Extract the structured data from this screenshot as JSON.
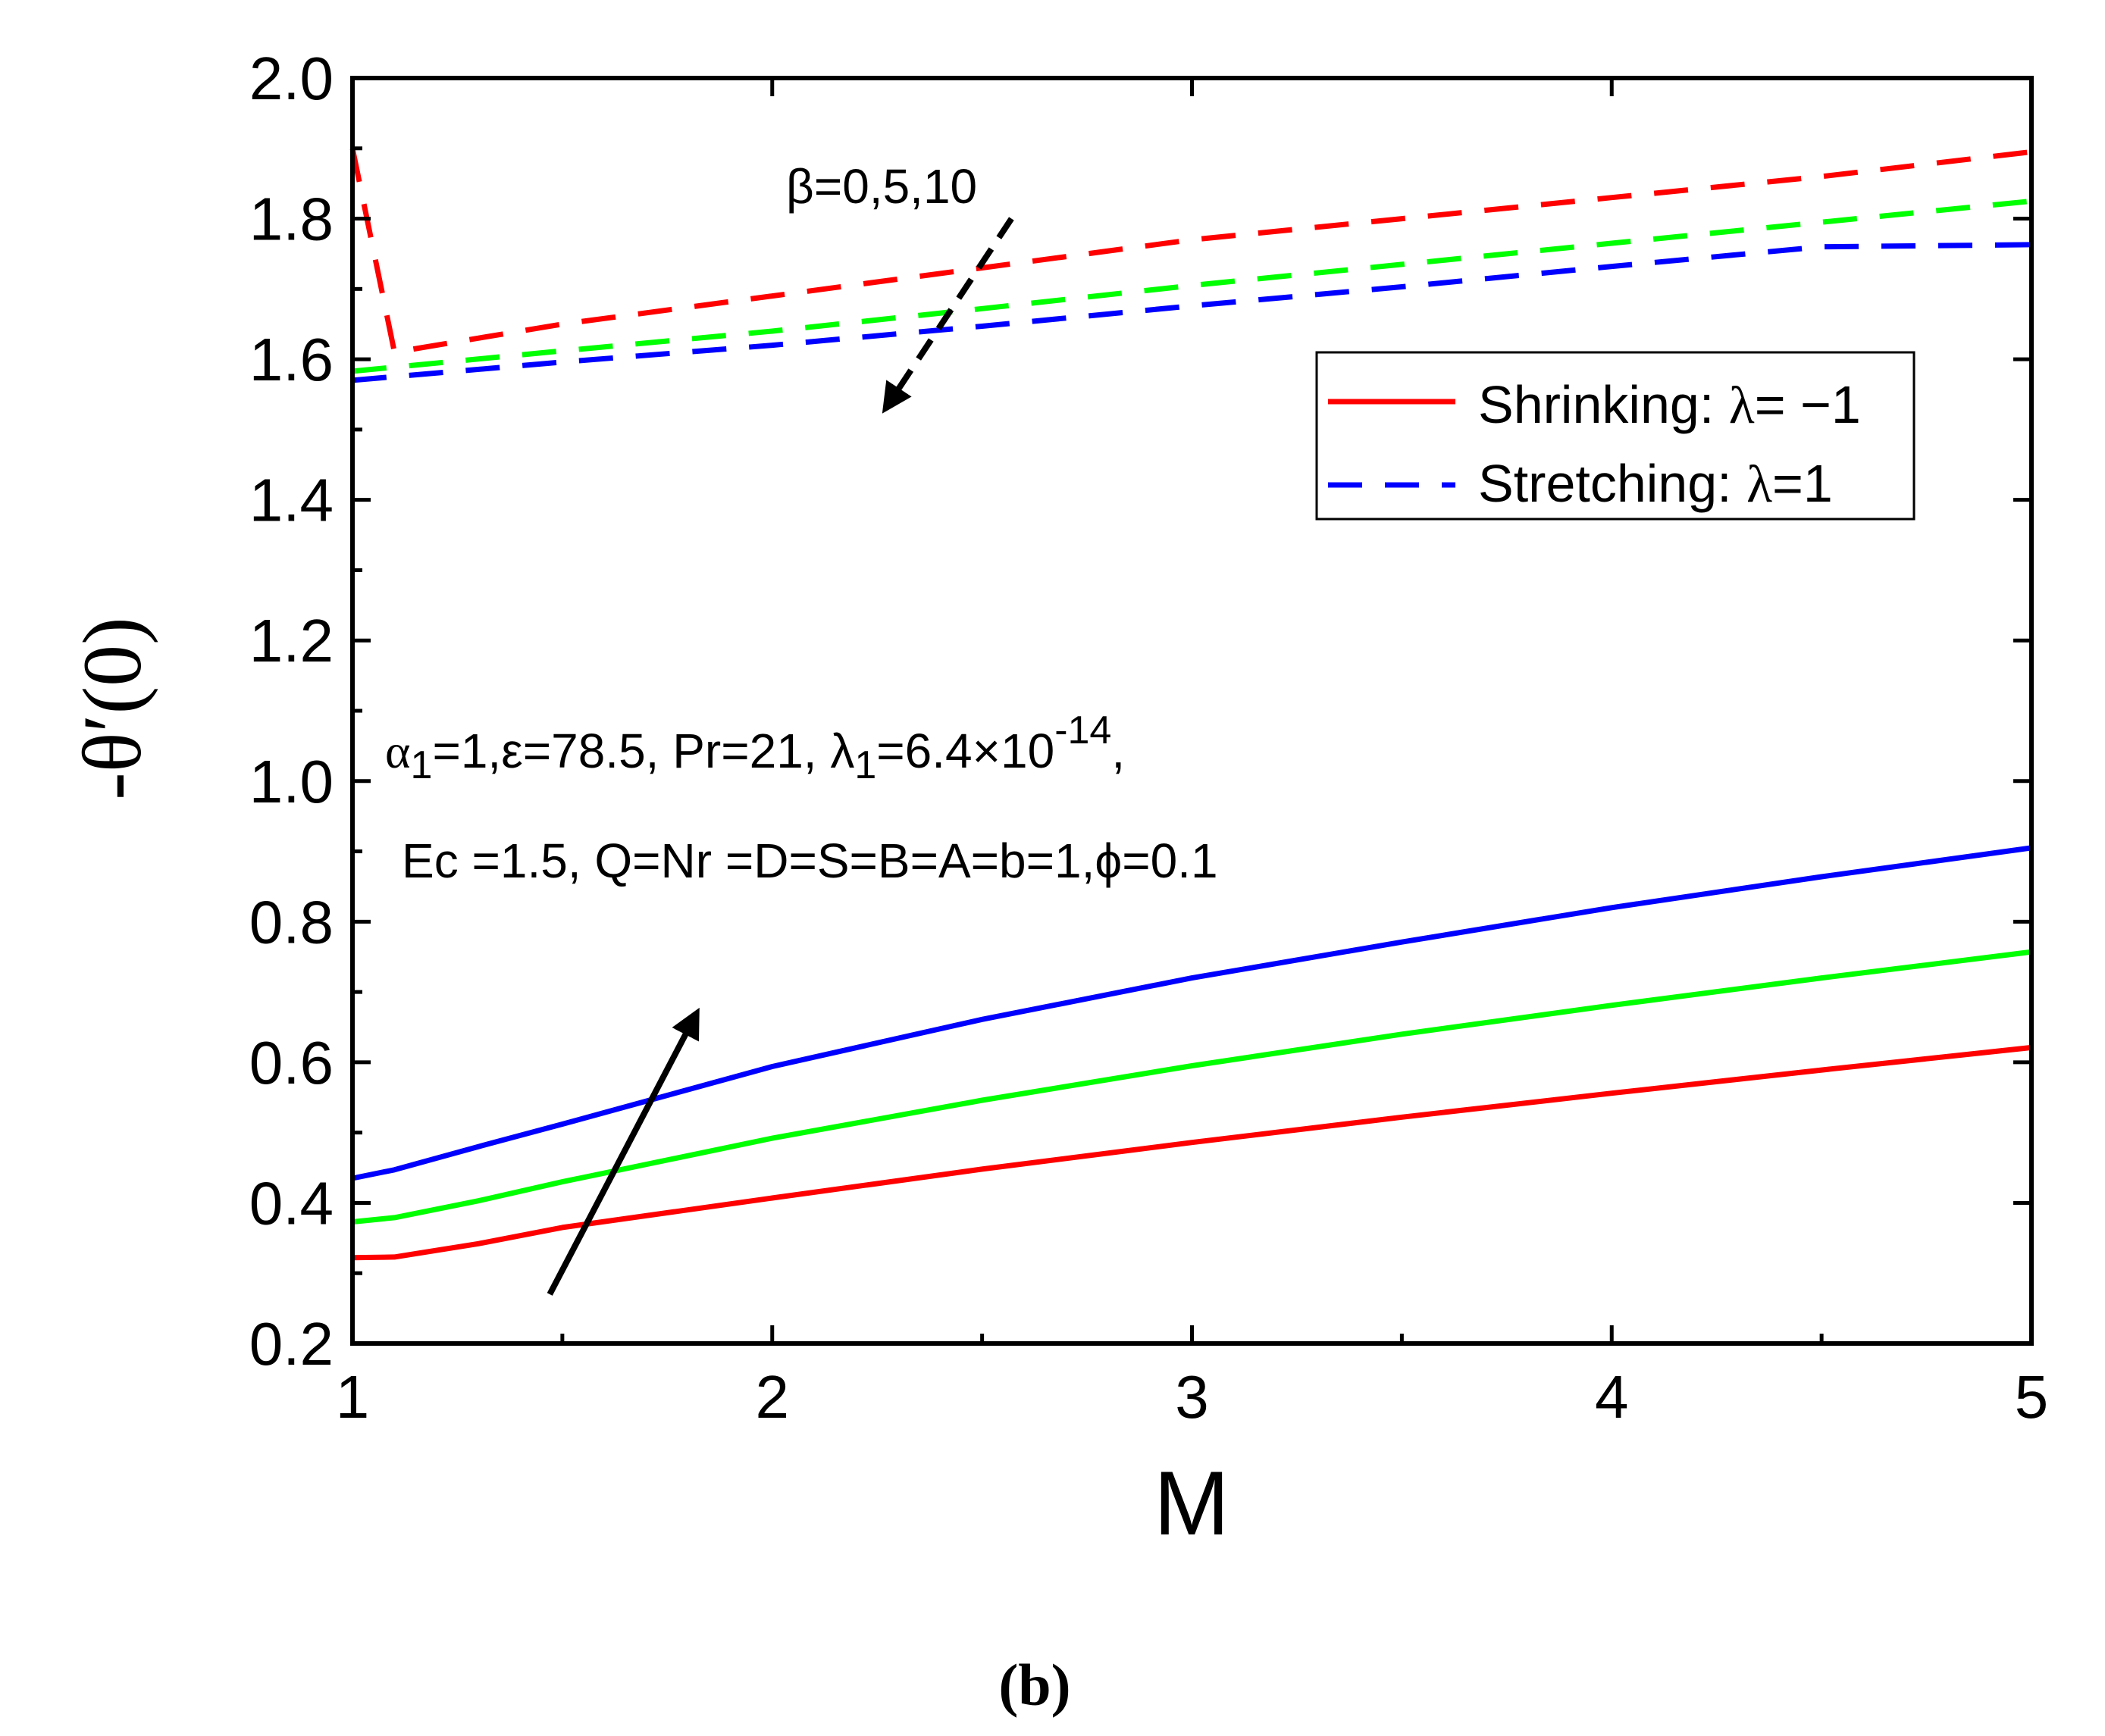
{
  "chart_data": {
    "type": "line",
    "panel_label": "(b)",
    "xlabel": "M",
    "ylabel": "-θ′(0)",
    "xlim": [
      1,
      5
    ],
    "ylim": [
      0.2,
      2.0
    ],
    "xticks": [
      1,
      2,
      3,
      4,
      5
    ],
    "xtick_labels": [
      "1",
      "2",
      "3",
      "4",
      "5"
    ],
    "yticks": [
      0.2,
      0.4,
      0.6,
      0.8,
      1.0,
      1.2,
      1.4,
      1.6,
      1.8,
      2.0
    ],
    "ytick_labels": [
      "0.2",
      "0.4",
      "0.6",
      "0.8",
      "1.0",
      "1.2",
      "1.4",
      "1.6",
      "1.8",
      "2.0"
    ],
    "grid": false,
    "legend": {
      "position": "top-right",
      "entries": [
        {
          "label_prefix": "Shrinking: ",
          "symbol": "λ",
          "label_suffix": "= −1",
          "style": "solid",
          "color": "#ff0000"
        },
        {
          "label_prefix": "Stretching: ",
          "symbol": "λ",
          "label_suffix": "=1",
          "style": "dashed",
          "color": "#0000ff"
        }
      ]
    },
    "series": [
      {
        "name": "Shrinking β=0",
        "style": "solid",
        "color": "#ff0000",
        "x": [
          1.0,
          1.1,
          1.3,
          1.5,
          2.0,
          2.5,
          3.0,
          3.5,
          4.0,
          4.5,
          5.0
        ],
        "y": [
          0.322,
          0.323,
          0.342,
          0.365,
          0.407,
          0.448,
          0.486,
          0.522,
          0.556,
          0.589,
          0.621
        ]
      },
      {
        "name": "Shrinking β=5",
        "style": "solid",
        "color": "#00ff00",
        "x": [
          1.0,
          1.1,
          1.3,
          1.5,
          2.0,
          2.5,
          3.0,
          3.5,
          4.0,
          4.5,
          5.0
        ],
        "y": [
          0.373,
          0.379,
          0.403,
          0.43,
          0.492,
          0.546,
          0.595,
          0.64,
          0.681,
          0.72,
          0.757
        ]
      },
      {
        "name": "Shrinking β=10",
        "style": "solid",
        "color": "#0000ff",
        "x": [
          1.0,
          1.1,
          1.3,
          1.5,
          2.0,
          2.5,
          3.0,
          3.5,
          4.0,
          4.5,
          5.0
        ],
        "y": [
          0.435,
          0.447,
          0.48,
          0.512,
          0.594,
          0.661,
          0.72,
          0.771,
          0.82,
          0.864,
          0.905
        ]
      },
      {
        "name": "Stretching β=0",
        "style": "dashed",
        "color": "#ff0000",
        "x": [
          1.0,
          1.1,
          1.5,
          2.0,
          2.5,
          3.0,
          3.5,
          4.0,
          4.5,
          5.0
        ],
        "y": [
          1.9,
          1.61,
          1.65,
          1.69,
          1.73,
          1.77,
          1.8,
          1.83,
          1.86,
          1.895
        ]
      },
      {
        "name": "Stretching β=5",
        "style": "dashed",
        "color": "#00ff00",
        "x": [
          1.0,
          1.5,
          2.0,
          2.5,
          3.0,
          3.5,
          4.0,
          4.5,
          5.0
        ],
        "y": [
          1.583,
          1.612,
          1.64,
          1.672,
          1.705,
          1.735,
          1.765,
          1.795,
          1.825
        ]
      },
      {
        "name": "Stretching β=10",
        "style": "dashed",
        "color": "#0000ff",
        "x": [
          1.0,
          1.5,
          2.0,
          2.5,
          3.0,
          3.5,
          4.0,
          4.5,
          5.0
        ],
        "y": [
          1.57,
          1.596,
          1.62,
          1.647,
          1.676,
          1.703,
          1.732,
          1.76,
          1.763
        ]
      }
    ],
    "annotations": {
      "beta": "β=0,5,10",
      "params_line1": {
        "p1": "α",
        "p1_sub": "1",
        "p2": "=1,ε=78.5, Pr=21, λ",
        "p2_sub": "1",
        "p3": "=6.4×10",
        "p3_sup": "-14",
        "p4": ","
      },
      "params_line2": "Ec =1.5, Q=Nr =D=S=B=A=b=1,ϕ=0.1"
    },
    "arrows": [
      {
        "name": "beta-arrow-stretching",
        "style": "dashed",
        "from": [
          2.57,
          1.8
        ],
        "to": [
          2.27,
          1.53
        ]
      },
      {
        "name": "beta-arrow-shrinking",
        "style": "solid",
        "from": [
          1.47,
          0.27
        ],
        "to": [
          1.82,
          0.67
        ]
      }
    ]
  }
}
